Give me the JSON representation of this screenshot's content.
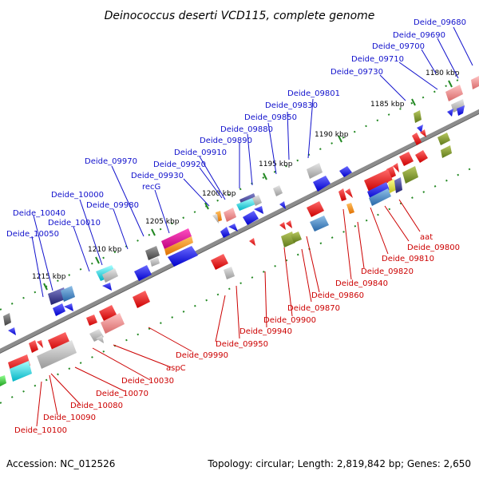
{
  "title": "Deinococcus deserti VCD115, complete genome",
  "footer": {
    "accession": "Accession: NC_012526",
    "topology": "Topology: circular; Length: 2,819,842 bp; Genes: 2,650"
  },
  "ticks": [
    "1180 kbp",
    "1185 kbp",
    "1190 kbp",
    "1195 kbp",
    "1200 kbp",
    "1205 kbp",
    "1210 kbp",
    "1215 kbp"
  ],
  "labels_top": [
    "Deide_09680",
    "Deide_09690",
    "Deide_09700",
    "Deide_09710",
    "Deide_09730",
    "Deide_09801",
    "Deide_09830",
    "Deide_09850",
    "Deide_09880",
    "Deide_09890",
    "Deide_09910",
    "Deide_09920",
    "Deide_09930",
    "recG",
    "Deide_09970",
    "Deide_09980",
    "Deide_10000",
    "Deide_10010",
    "Deide_10040",
    "Deide_10050"
  ],
  "labels_bottom": [
    "aat",
    "Deide_09800",
    "Deide_09810",
    "Deide_09820",
    "Deide_09840",
    "Deide_09860",
    "Deide_09870",
    "Deide_09900",
    "Deide_09940",
    "Deide_09950",
    "Deide_09990",
    "aspC",
    "Deide_10030",
    "Deide_10070",
    "Deide_10080",
    "Deide_10090",
    "Deide_10100"
  ],
  "colors": {
    "backbone": "#808080",
    "forward_strand": "#0000ee",
    "reverse_strand": "#ee0000",
    "tick_green": "#228822",
    "label_blue": "#1111cc",
    "label_red": "#cc0000"
  }
}
